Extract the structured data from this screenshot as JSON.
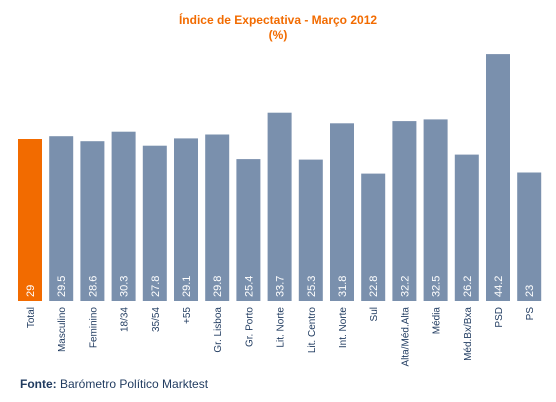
{
  "chart_data": {
    "type": "bar",
    "title": "Índice de Expectativa - Março 2012",
    "subtitle": "(%)",
    "categories": [
      "Total",
      "Masculino",
      "Feminino",
      "18/34",
      "35/54",
      "+55",
      "Gr. Lisboa",
      "Gr. Porto",
      "Lit. Norte",
      "Lit. Centro",
      "Int. Norte",
      "Sul",
      "Alta/Méd.Alta",
      "Média",
      "Méd.Bx/Bxa",
      "PSD",
      "PS"
    ],
    "values": [
      29,
      29.5,
      28.6,
      30.3,
      27.8,
      29.1,
      29.8,
      25.4,
      33.7,
      25.3,
      31.8,
      22.8,
      32.2,
      32.5,
      26.2,
      44.2,
      23
    ],
    "value_labels": [
      "29",
      "29.5",
      "28.6",
      "30.3",
      "27.8",
      "29.1",
      "29.8",
      "25.4",
      "33.7",
      "25.3",
      "31.8",
      "22.8",
      "32.2",
      "32.5",
      "26.2",
      "44.2",
      "23"
    ],
    "highlight_index": 0,
    "colors": {
      "highlight": "#F26B00",
      "bar": "#7A90AD",
      "title": "#F26B00",
      "label": "#1F3A5F"
    },
    "ylim": [
      0,
      46
    ],
    "grid": false,
    "legend": "none"
  },
  "footer": {
    "source_label": "Fonte:",
    "source_text": "Barómetro Político Marktest"
  }
}
